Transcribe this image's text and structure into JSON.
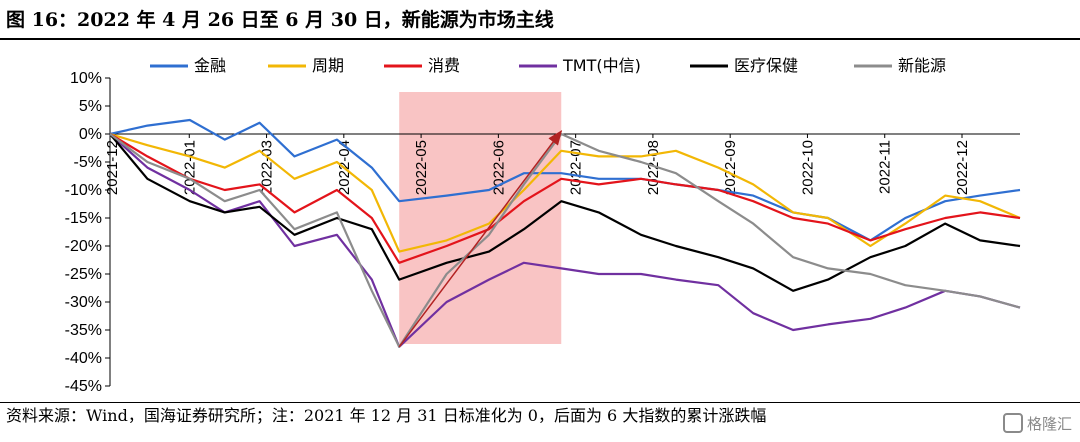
{
  "header": {
    "title": "图 16：2022 年 4 月 26 日至 6 月 30 日，新能源为市场主线"
  },
  "footer": {
    "source": "资料来源：Wind，国海证券研究所；注：2021 年 12 月 31 日标准化为 0，后面为 6 大指数的累计涨跌幅",
    "watermark": "格隆汇"
  },
  "chart_data": {
    "type": "line",
    "title": "",
    "xlabel": "",
    "ylabel": "",
    "ylim": [
      -45,
      10
    ],
    "yticks": [
      "10%",
      "5%",
      "0%",
      "-5%",
      "-10%",
      "-15%",
      "-20%",
      "-25%",
      "-30%",
      "-35%",
      "-40%",
      "-45%"
    ],
    "x_tick_labels": [
      "2021-12",
      "2022-01",
      "2022-03",
      "2022-04",
      "2022-05",
      "2022-06",
      "2022-07",
      "2022-08",
      "2022-09",
      "2022-10",
      "2022-11",
      "2022-12"
    ],
    "legend_position": "top",
    "highlight_period": {
      "start": "2022-04-26",
      "end": "2022-06-30"
    },
    "annotation_arrow": {
      "from": [
        "2022-04-26",
        -38
      ],
      "to": [
        "2022-06-30",
        0.5
      ]
    },
    "x": [
      "2021-12-31",
      "2022-01-15",
      "2022-02-01",
      "2022-02-15",
      "2022-03-01",
      "2022-03-15",
      "2022-04-01",
      "2022-04-15",
      "2022-04-26",
      "2022-05-15",
      "2022-06-01",
      "2022-06-15",
      "2022-06-30",
      "2022-07-15",
      "2022-08-01",
      "2022-08-15",
      "2022-09-01",
      "2022-09-15",
      "2022-10-01",
      "2022-10-15",
      "2022-11-01",
      "2022-11-15",
      "2022-12-01",
      "2022-12-15",
      "2022-12-31"
    ],
    "series": [
      {
        "name": "金融",
        "color": "#2f6fd1",
        "values": [
          0,
          1.5,
          2.5,
          -1,
          2,
          -4,
          -1,
          -6,
          -12,
          -11,
          -10,
          -7,
          -7,
          -8,
          -8,
          -9,
          -10,
          -11,
          -14,
          -15,
          -19,
          -15,
          -12,
          -11,
          -10
        ]
      },
      {
        "name": "周期",
        "color": "#f2b705",
        "values": [
          0,
          -2,
          -4,
          -6,
          -3,
          -8,
          -5,
          -10,
          -21,
          -19,
          -16,
          -10,
          -3,
          -4,
          -4,
          -3,
          -6,
          -9,
          -14,
          -15,
          -20,
          -16,
          -11,
          -12,
          -15
        ]
      },
      {
        "name": "消费",
        "color": "#e3141b",
        "values": [
          0,
          -4,
          -8,
          -10,
          -9,
          -14,
          -10,
          -15,
          -23,
          -20,
          -17,
          -12,
          -8,
          -9,
          -8,
          -9,
          -10,
          -12,
          -15,
          -16,
          -19,
          -17,
          -15,
          -14,
          -15
        ]
      },
      {
        "name": "TMT(中信)",
        "color": "#7030a0",
        "values": [
          0,
          -6,
          -10,
          -14,
          -12,
          -20,
          -18,
          -26,
          -38,
          -30,
          -26,
          -23,
          -24,
          -25,
          -25,
          -26,
          -27,
          -32,
          -35,
          -34,
          -33,
          -31,
          -28,
          -29,
          -31
        ]
      },
      {
        "name": "医疗保健",
        "color": "#000000",
        "values": [
          0,
          -8,
          -12,
          -14,
          -13,
          -18,
          -15,
          -17,
          -26,
          -23,
          -21,
          -17,
          -12,
          -14,
          -18,
          -20,
          -22,
          -24,
          -28,
          -26,
          -22,
          -20,
          -16,
          -19,
          -20
        ]
      },
      {
        "name": "新能源",
        "color": "#8c8c8c",
        "values": [
          0,
          -5,
          -8,
          -12,
          -10,
          -17,
          -14,
          -28,
          -38,
          -25,
          -18,
          -9,
          0,
          -3,
          -5,
          -7,
          -12,
          -16,
          -22,
          -24,
          -25,
          -27,
          -28,
          -29,
          -31
        ]
      }
    ]
  }
}
